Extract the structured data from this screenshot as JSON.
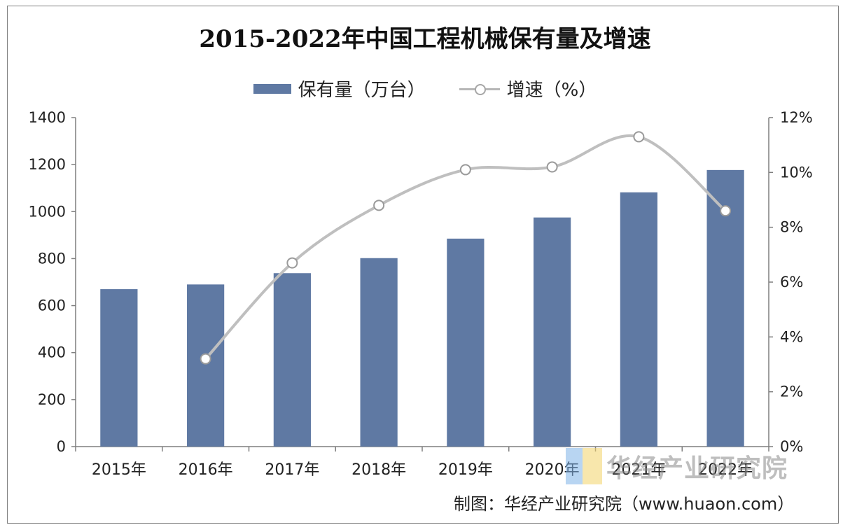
{
  "chart_data": {
    "type": "bar+line",
    "title": "2015-2022年中国工程机械保有量及增速",
    "categories": [
      "2015年",
      "2016年",
      "2017年",
      "2018年",
      "2019年",
      "2020年",
      "2021年",
      "2022年"
    ],
    "series": [
      {
        "name": "保有量（万台）",
        "type": "bar",
        "axis": "left",
        "color": "#5f79a3",
        "values": [
          670,
          690,
          738,
          802,
          885,
          975,
          1082,
          1177
        ]
      },
      {
        "name": "增速（%）",
        "type": "line",
        "axis": "right",
        "color": "#bfbfbf",
        "values": [
          null,
          3.2,
          6.7,
          8.8,
          10.1,
          10.2,
          11.3,
          8.6
        ]
      }
    ],
    "left_axis": {
      "min": 0,
      "max": 1400,
      "step": 200,
      "ticks": [
        "0",
        "200",
        "400",
        "600",
        "800",
        "1000",
        "1200",
        "1400"
      ]
    },
    "right_axis": {
      "min": 0,
      "max": 12,
      "step": 2,
      "ticks": [
        "0%",
        "2%",
        "4%",
        "6%",
        "8%",
        "10%",
        "12%"
      ]
    },
    "legend": "top-center",
    "grid": false
  },
  "watermark": {
    "text": "华经产业研究院"
  },
  "credit": "制图：华经产业研究院（www.huaon.com）"
}
